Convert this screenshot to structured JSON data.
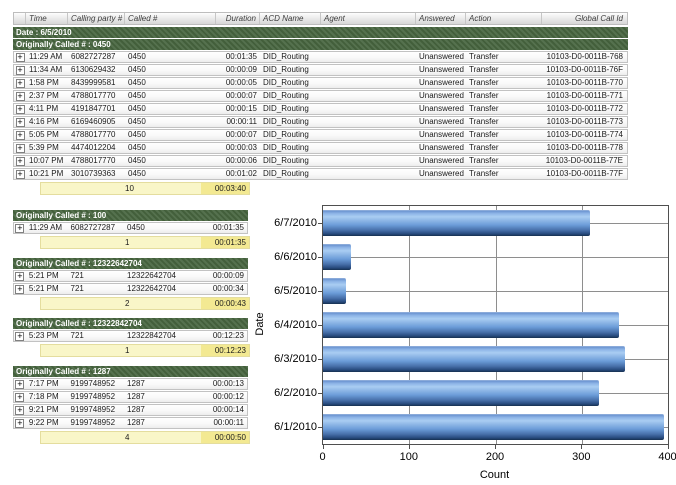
{
  "icons": {
    "expand": "+"
  },
  "colors": {
    "group_band_green": "#47653f",
    "summary_yellow": "#f9f6c8",
    "summary_total_yellow": "#f3e992",
    "bar_blue_highlight": "#a9cdf2",
    "bar_blue_mid": "#6b9cd8",
    "bar_blue_dark": "#16304f"
  },
  "report": {
    "date_band": "Date : 6/5/2010",
    "columns": [
      "",
      "Time",
      "Calling party #",
      "Called #",
      "Duration",
      "ACD Name",
      "Agent",
      "Answered",
      "Action",
      "Global Call Id"
    ],
    "groups": [
      {
        "title": "Originally Called # : 0450",
        "rows": [
          [
            "11:29 AM",
            "6082727287",
            "0450",
            "00:01:35",
            "DID_Routing",
            "",
            "Unanswered",
            "Transfer",
            "10103-D0-0011B-768"
          ],
          [
            "11:34 AM",
            "6130629432",
            "0450",
            "00:00:09",
            "DID_Routing",
            "",
            "Unanswered",
            "Transfer",
            "10103-D0-0011B-76F"
          ],
          [
            "1:58 PM",
            "8439999581",
            "0450",
            "00:00:05",
            "DID_Routing",
            "",
            "Unanswered",
            "Transfer",
            "10103-D0-0011B-770"
          ],
          [
            "2:37 PM",
            "4788017770",
            "0450",
            "00:00:07",
            "DID_Routing",
            "",
            "Unanswered",
            "Transfer",
            "10103-D0-0011B-771"
          ],
          [
            "4:11 PM",
            "4191847701",
            "0450",
            "00:00:15",
            "DID_Routing",
            "",
            "Unanswered",
            "Transfer",
            "10103-D0-0011B-772"
          ],
          [
            "4:16 PM",
            "6169460905",
            "0450",
            "00:00:11",
            "DID_Routing",
            "",
            "Unanswered",
            "Transfer",
            "10103-D0-0011B-773"
          ],
          [
            "5:05 PM",
            "4788017770",
            "0450",
            "00:00:07",
            "DID_Routing",
            "",
            "Unanswered",
            "Transfer",
            "10103-D0-0011B-774"
          ],
          [
            "5:39 PM",
            "4474012204",
            "0450",
            "00:00:03",
            "DID_Routing",
            "",
            "Unanswered",
            "Transfer",
            "10103-D0-0011B-778"
          ],
          [
            "10:07 PM",
            "4788017770",
            "0450",
            "00:00:06",
            "DID_Routing",
            "",
            "Unanswered",
            "Transfer",
            "10103-D0-0011B-77E"
          ],
          [
            "10:21 PM",
            "3010739363",
            "0450",
            "00:01:02",
            "DID_Routing",
            "",
            "Unanswered",
            "Transfer",
            "10103-D0-0011B-77F"
          ]
        ],
        "summary": {
          "count": "10",
          "total": "00:03:40"
        }
      },
      {
        "title": "Originally Called # : 100",
        "rows": [
          [
            "11:29 AM",
            "6082727287",
            "0450",
            "00:01:35"
          ]
        ],
        "summary": {
          "count": "1",
          "total": "00:01:35"
        }
      },
      {
        "title": "Originally Called # : 12322642704",
        "rows": [
          [
            "5:21 PM",
            "721",
            "12322642704",
            "00:00:09"
          ],
          [
            "5:21 PM",
            "721",
            "12322642704",
            "00:00:34"
          ]
        ],
        "summary": {
          "count": "2",
          "total": "00:00:43"
        }
      },
      {
        "title": "Originally Called # : 12322842704",
        "rows": [
          [
            "5:23 PM",
            "721",
            "12322842704",
            "00:12:23"
          ]
        ],
        "summary": {
          "count": "1",
          "total": "00:12:23"
        }
      },
      {
        "title": "Originally Called # : 1287",
        "rows": [
          [
            "7:17 PM",
            "9199748952",
            "1287",
            "00:00:13"
          ],
          [
            "7:18 PM",
            "9199748952",
            "1287",
            "00:00:12"
          ],
          [
            "9:21 PM",
            "9199748952",
            "1287",
            "00:00:14"
          ],
          [
            "9:22 PM",
            "9199748952",
            "1287",
            "00:00:11"
          ]
        ],
        "summary": {
          "count": "4",
          "total": "00:00:50"
        }
      }
    ]
  },
  "chart_data": {
    "type": "bar",
    "orientation": "horizontal",
    "categories": [
      "6/7/2010",
      "6/6/2010",
      "6/5/2010",
      "6/4/2010",
      "6/3/2010",
      "6/2/2010",
      "6/1/2010"
    ],
    "values": [
      310,
      32,
      27,
      343,
      350,
      320,
      395
    ],
    "xlabel": "Count",
    "ylabel": "Date",
    "xlim": [
      0,
      400
    ],
    "xticks": [
      0,
      100,
      200,
      300,
      400
    ],
    "grid": true,
    "legend": "none"
  }
}
